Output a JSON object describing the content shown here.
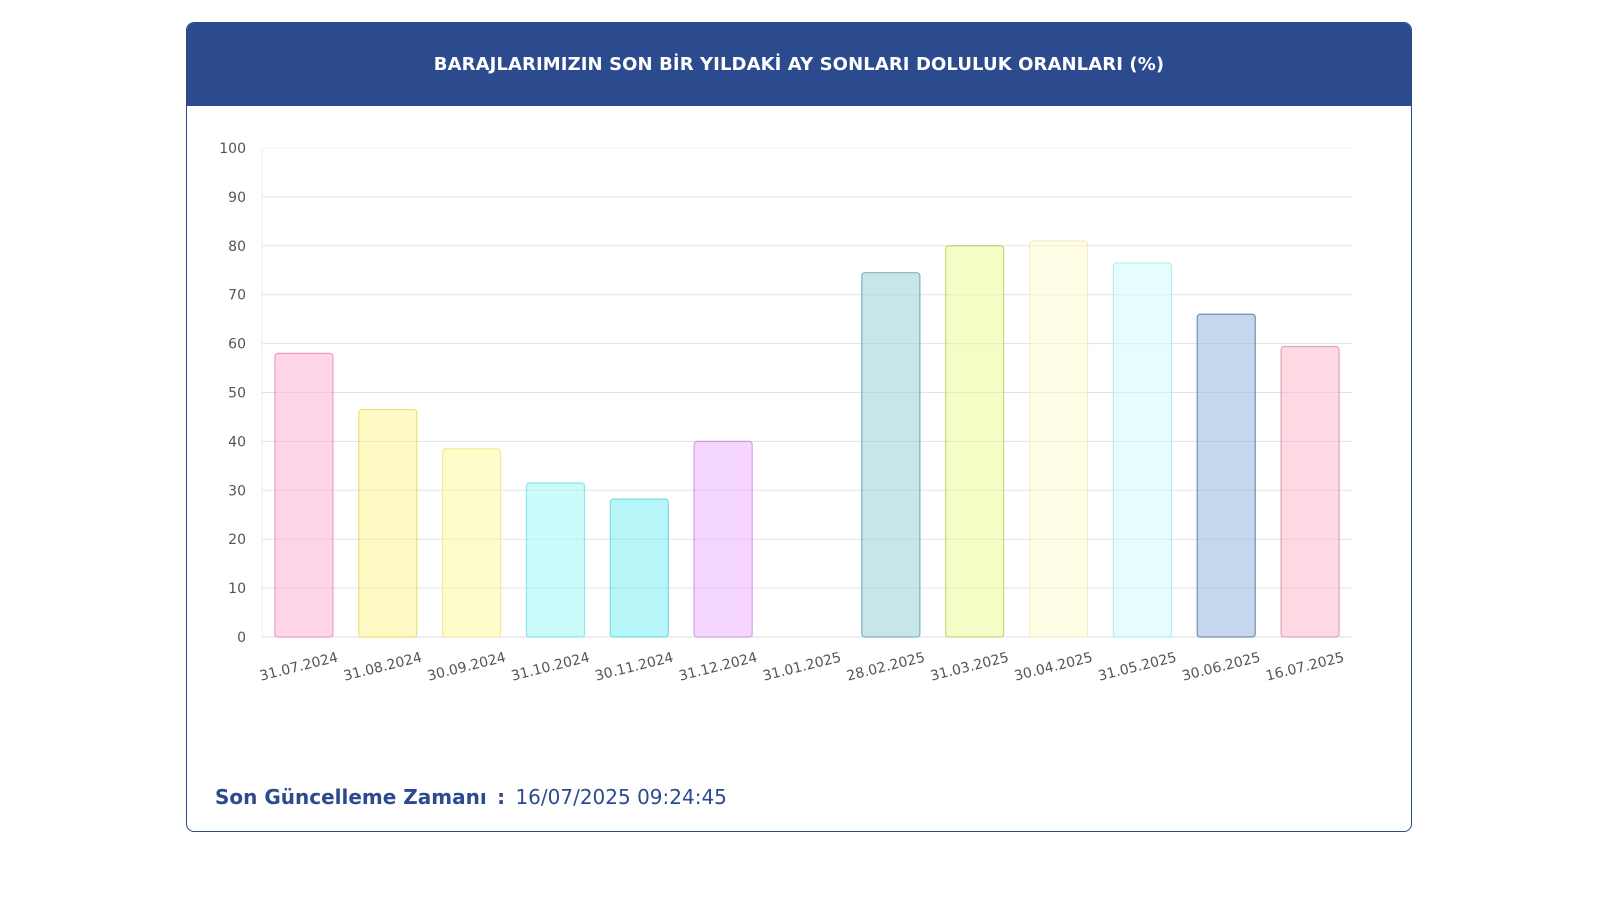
{
  "header": {
    "title": "BARAJLARIMIZIN SON BİR YILDAKİ AY SONLARI DOLULUK ORANLARI (%)"
  },
  "footer": {
    "label": "Son Güncelleme Zamanı",
    "separator": ":",
    "value": "16/07/2025 09:24:45"
  },
  "chart_data": {
    "type": "bar",
    "title": "BARAJLARIMIZIN SON BİR YILDAKİ AY SONLARI DOLULUK ORANLARI (%)",
    "xlabel": "",
    "ylabel": "",
    "ylim": [
      0,
      100
    ],
    "yticks": [
      "0",
      "10",
      "20",
      "30",
      "40",
      "50",
      "60",
      "70",
      "80",
      "90",
      "100"
    ],
    "grid": true,
    "legend": "none",
    "categories": [
      "31.07.2024",
      "31.08.2024",
      "30.09.2024",
      "31.10.2024",
      "30.11.2024",
      "31.12.2024",
      "31.01.2025",
      "28.02.2025",
      "31.03.2025",
      "30.04.2025",
      "31.05.2025",
      "30.06.2025",
      "16.07.2025"
    ],
    "values": [
      58,
      46.5,
      38.5,
      31.5,
      28.2,
      40,
      0,
      74.5,
      80,
      81,
      76.5,
      66,
      59.4
    ],
    "fill_colors": [
      "#ffd6e8",
      "#fff9c4",
      "#fffccc",
      "#ccfbfc",
      "#b7f6f9",
      "#f5d6ff",
      "#ffffff",
      "#c6e6ea",
      "#f5fcc5",
      "#fffde6",
      "#e6fdfd",
      "#c5d8ee",
      "#fcd9e3"
    ],
    "stroke_colors": [
      "#f49ac1",
      "#ece27a",
      "#f2ea9e",
      "#8fe4ea",
      "#7edde5",
      "#d99ce8",
      "#ffffff",
      "#7fb4bd",
      "#c7d87a",
      "#f6f0c0",
      "#b6eded",
      "#6f8fb8",
      "#e5a4b6"
    ]
  }
}
